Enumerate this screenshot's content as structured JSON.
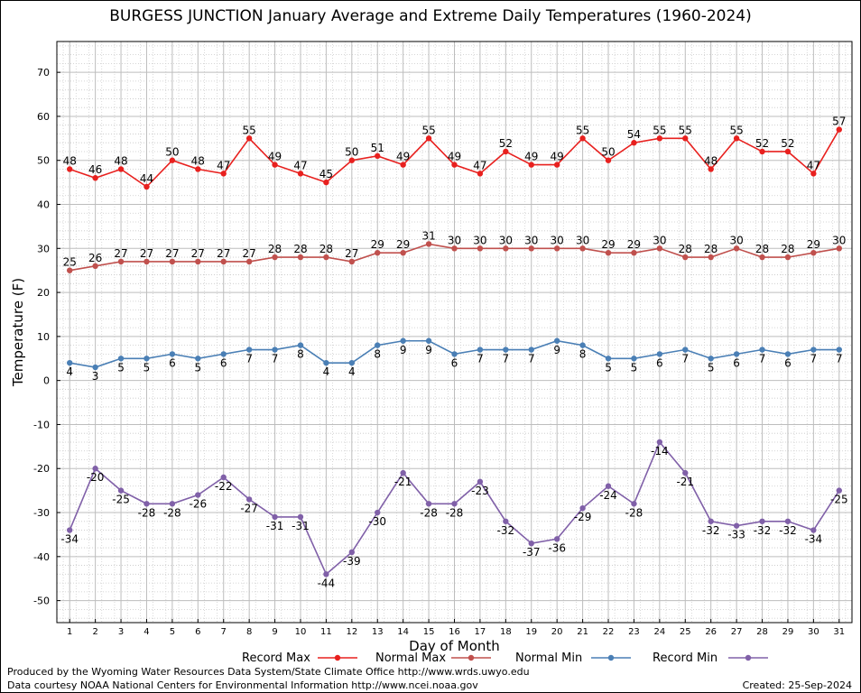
{
  "title": "BURGESS JUNCTION January Average and Extreme Daily Temperatures (1960-2024)",
  "footer": {
    "line1": "Produced by the Wyoming Water Resources Data System/State Climate Office http://www.wrds.uwyo.edu",
    "line2": "Data courtesy NOAA National Centers for Environmental Information http://www.ncei.noaa.gov",
    "created": "Created: 25-Sep-2024"
  },
  "chart_data": {
    "type": "line",
    "title": "BURGESS JUNCTION January Average and Extreme Daily Temperatures (1960-2024)",
    "xlabel": "Day of Month",
    "ylabel": "Temperature (F)",
    "xlim": [
      0.5,
      31.5
    ],
    "ylim": [
      -55,
      77
    ],
    "yticks": [
      -50,
      -40,
      -30,
      -20,
      -10,
      0,
      10,
      20,
      30,
      40,
      50,
      60,
      70
    ],
    "x": [
      1,
      2,
      3,
      4,
      5,
      6,
      7,
      8,
      9,
      10,
      11,
      12,
      13,
      14,
      15,
      16,
      17,
      18,
      19,
      20,
      21,
      22,
      23,
      24,
      25,
      26,
      27,
      28,
      29,
      30,
      31
    ],
    "grid": true,
    "legend_position": "bottom",
    "series": [
      {
        "name": "Record Max",
        "color": "#e8201e",
        "label_pos": "above",
        "values": [
          48,
          46,
          48,
          44,
          50,
          48,
          47,
          55,
          49,
          47,
          45,
          50,
          51,
          49,
          55,
          49,
          47,
          52,
          49,
          49,
          55,
          50,
          54,
          55,
          55,
          48,
          55,
          52,
          52,
          47,
          57
        ]
      },
      {
        "name": "Normal Max",
        "color": "#c0504d",
        "label_pos": "above",
        "values": [
          25,
          26,
          27,
          27,
          27,
          27,
          27,
          27,
          28,
          28,
          28,
          27,
          29,
          29,
          31,
          30,
          30,
          30,
          30,
          30,
          30,
          29,
          29,
          30,
          28,
          28,
          30,
          28,
          28,
          29,
          30
        ]
      },
      {
        "name": "Normal Min",
        "color": "#4a7fb5",
        "label_pos": "below",
        "values": [
          4,
          3,
          5,
          5,
          6,
          5,
          6,
          7,
          7,
          8,
          4,
          4,
          8,
          9,
          9,
          6,
          7,
          7,
          7,
          9,
          8,
          5,
          5,
          6,
          7,
          5,
          6,
          7,
          6,
          7,
          7
        ]
      },
      {
        "name": "Record Min",
        "color": "#8060a8",
        "label_pos": "below",
        "values": [
          -34,
          -20,
          -25,
          -28,
          -28,
          -26,
          -22,
          -27,
          -31,
          -31,
          -44,
          -39,
          -30,
          -21,
          -28,
          -28,
          -23,
          -32,
          -37,
          -36,
          -29,
          -24,
          -28,
          -14,
          -21,
          -32,
          -33,
          -32,
          -32,
          -34,
          -25
        ]
      }
    ]
  }
}
